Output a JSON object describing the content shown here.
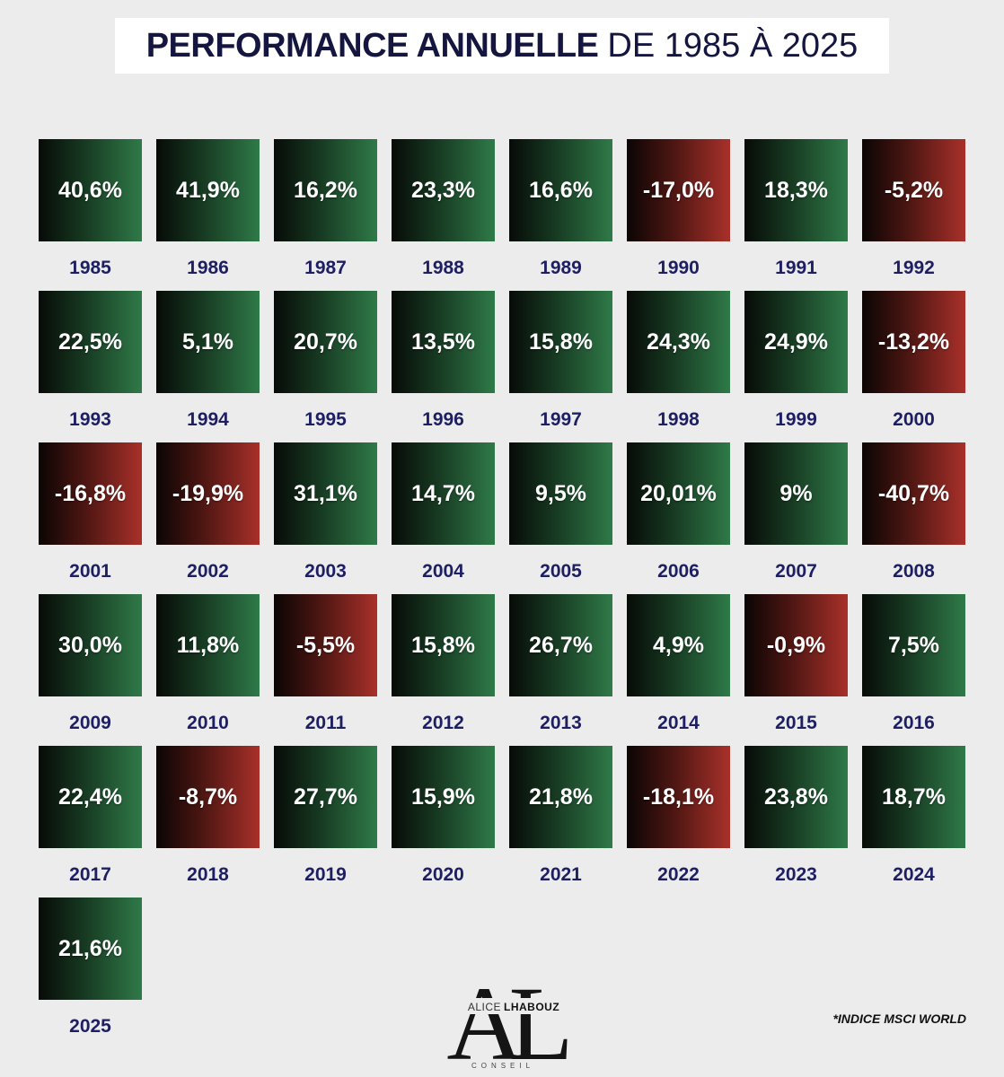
{
  "title": {
    "bold": "PERFORMANCE ANNUELLE",
    "light": "DE 1985 À 2025"
  },
  "colors": {
    "positive": "#2f7a48",
    "negative": "#a9302a",
    "year_label": "#1e1f63"
  },
  "chart_data": {
    "type": "table",
    "title": "PERFORMANCE ANNUELLE DE 1985 À 2025",
    "columns": 8,
    "cells": [
      {
        "year": "1985",
        "label": "40,6%",
        "value": 40.6
      },
      {
        "year": "1986",
        "label": "41,9%",
        "value": 41.9
      },
      {
        "year": "1987",
        "label": "16,2%",
        "value": 16.2
      },
      {
        "year": "1988",
        "label": "23,3%",
        "value": 23.3
      },
      {
        "year": "1989",
        "label": "16,6%",
        "value": 16.6
      },
      {
        "year": "1990",
        "label": "-17,0%",
        "value": -17.0
      },
      {
        "year": "1991",
        "label": "18,3%",
        "value": 18.3
      },
      {
        "year": "1992",
        "label": "-5,2%",
        "value": -5.2
      },
      {
        "year": "1993",
        "label": "22,5%",
        "value": 22.5
      },
      {
        "year": "1994",
        "label": "5,1%",
        "value": 5.1
      },
      {
        "year": "1995",
        "label": "20,7%",
        "value": 20.7
      },
      {
        "year": "1996",
        "label": "13,5%",
        "value": 13.5
      },
      {
        "year": "1997",
        "label": "15,8%",
        "value": 15.8
      },
      {
        "year": "1998",
        "label": "24,3%",
        "value": 24.3
      },
      {
        "year": "1999",
        "label": "24,9%",
        "value": 24.9
      },
      {
        "year": "2000",
        "label": "-13,2%",
        "value": -13.2
      },
      {
        "year": "2001",
        "label": "-16,8%",
        "value": -16.8
      },
      {
        "year": "2002",
        "label": "-19,9%",
        "value": -19.9
      },
      {
        "year": "2003",
        "label": "31,1%",
        "value": 31.1
      },
      {
        "year": "2004",
        "label": "14,7%",
        "value": 14.7
      },
      {
        "year": "2005",
        "label": "9,5%",
        "value": 9.5
      },
      {
        "year": "2006",
        "label": "20,01%",
        "value": 20.01
      },
      {
        "year": "2007",
        "label": "9%",
        "value": 9.0
      },
      {
        "year": "2008",
        "label": "-40,7%",
        "value": -40.7
      },
      {
        "year": "2009",
        "label": "30,0%",
        "value": 30.0
      },
      {
        "year": "2010",
        "label": "11,8%",
        "value": 11.8
      },
      {
        "year": "2011",
        "label": "-5,5%",
        "value": -5.5
      },
      {
        "year": "2012",
        "label": "15,8%",
        "value": 15.8
      },
      {
        "year": "2013",
        "label": "26,7%",
        "value": 26.7
      },
      {
        "year": "2014",
        "label": "4,9%",
        "value": 4.9
      },
      {
        "year": "2015",
        "label": "-0,9%",
        "value": -0.9
      },
      {
        "year": "2016",
        "label": "7,5%",
        "value": 7.5
      },
      {
        "year": "2017",
        "label": "22,4%",
        "value": 22.4
      },
      {
        "year": "2018",
        "label": "-8,7%",
        "value": -8.7
      },
      {
        "year": "2019",
        "label": "27,7%",
        "value": 27.7
      },
      {
        "year": "2020",
        "label": "15,9%",
        "value": 15.9
      },
      {
        "year": "2021",
        "label": "21,8%",
        "value": 21.8
      },
      {
        "year": "2022",
        "label": "-18,1%",
        "value": -18.1
      },
      {
        "year": "2023",
        "label": "23,8%",
        "value": 23.8
      },
      {
        "year": "2024",
        "label": "18,7%",
        "value": 18.7
      },
      {
        "year": "2025",
        "label": "21,6%",
        "value": 21.6
      }
    ]
  },
  "logo": {
    "monogram": "AL",
    "first": "ALICE",
    "last": "LHABOUZ",
    "sub": "CONSEIL"
  },
  "footnote": "*INDICE MSCI WORLD"
}
